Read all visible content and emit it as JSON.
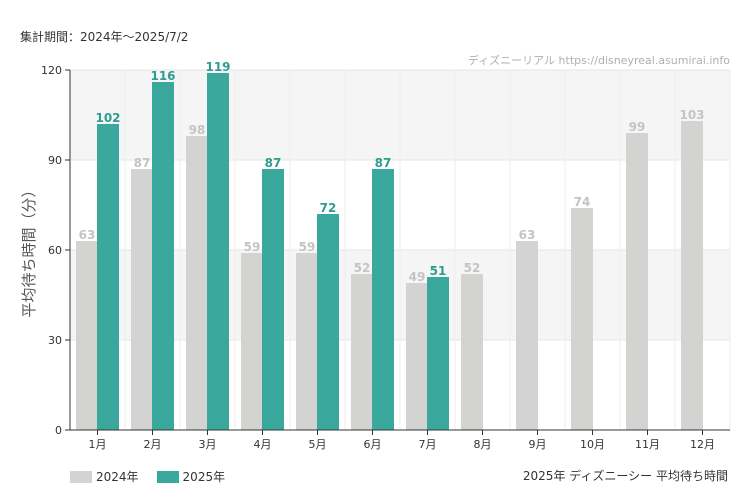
{
  "period_label": "集計期間：2024年～2025/7/2",
  "footer_title": "2025年 ディズニーシー 平均待ち時間",
  "chart_data": {
    "type": "bar",
    "title": "2025年 ディズニーシー 平均待ち時間",
    "watermark": "ディズニーリアル https://disneyreal.asumirai.info",
    "ylabel": "平均待ち時間（分）",
    "xlabel": "",
    "ylim": [
      0,
      120
    ],
    "yticks": [
      0,
      30,
      60,
      90,
      120
    ],
    "categories": [
      "1月",
      "2月",
      "3月",
      "4月",
      "5月",
      "6月",
      "7月",
      "8月",
      "9月",
      "10月",
      "11月",
      "12月"
    ],
    "series": [
      {
        "name": "2024年",
        "color": "#d3d3d2",
        "label_color": "#c4c4c4",
        "values": [
          63,
          87,
          98,
          59,
          59,
          52,
          49,
          52,
          63,
          74,
          99,
          103
        ]
      },
      {
        "name": "2025年",
        "color": "#3aa89c",
        "label_color": "#2f9c90",
        "values": [
          102,
          116,
          119,
          87,
          72,
          87,
          51,
          null,
          null,
          null,
          null,
          null
        ]
      }
    ],
    "legend_position": "bottom-left"
  }
}
